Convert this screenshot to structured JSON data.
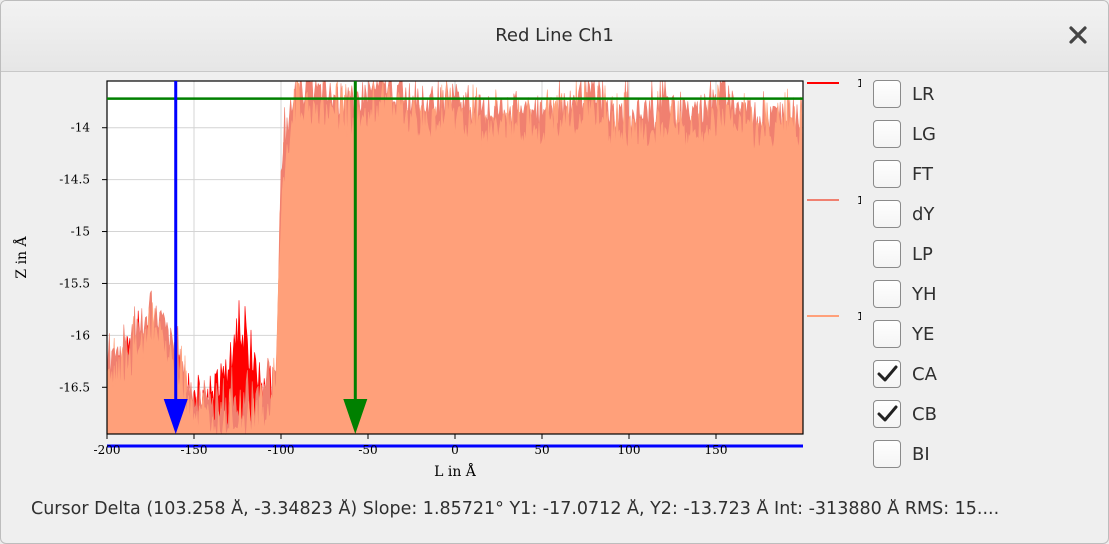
{
  "window": {
    "title": "Red Line Ch1"
  },
  "chart_data": {
    "type": "area",
    "xlabel": "L in Å",
    "ylabel": "Z in Å",
    "xlim": [
      -200,
      200
    ],
    "ylim": [
      -16.95,
      -13.55
    ],
    "x_ticks": [
      "-200",
      "-150",
      "-100",
      "-50",
      "0",
      "50",
      "100",
      "150"
    ],
    "y_ticks": [
      "-14",
      "-14.5",
      "-15",
      "-15.5",
      "-16",
      "-16.5"
    ],
    "grid": true,
    "legend": [
      {
        "label": "1",
        "color": "#ff0000"
      },
      {
        "label": "1",
        "color": "#f08070"
      },
      {
        "label": "1",
        "color": "#ffa07a"
      }
    ],
    "series": [
      {
        "color": "#ff0000",
        "x": [
          -200,
          -190,
          -180,
          -170,
          -160,
          -150,
          -140,
          -130,
          -125,
          -120,
          -115,
          -110,
          -105,
          -100
        ],
        "y": [
          -16.45,
          -16.2,
          -16.1,
          -16.0,
          -16.3,
          -16.75,
          -16.6,
          -16.3,
          -16.0,
          -16.1,
          -16.3,
          -16.5,
          -16.65,
          -16.7
        ]
      },
      {
        "color": "#ffa07a",
        "x": [
          -200,
          -190,
          -180,
          -170,
          -160,
          -150,
          -140,
          -130,
          -120,
          -110,
          -103,
          -100,
          -97,
          -93,
          -90,
          -80,
          -70,
          -60,
          -50,
          -40,
          -30,
          -20,
          -10,
          0,
          10,
          20,
          30,
          40,
          50,
          60,
          70,
          75,
          80,
          90,
          100,
          110,
          120,
          130,
          140,
          150,
          155,
          160,
          170,
          180,
          190,
          200
        ],
        "y": [
          -16.5,
          -16.3,
          -16.15,
          -16.0,
          -16.4,
          -16.8,
          -16.9,
          -16.9,
          -16.9,
          -16.8,
          -16.6,
          -14.8,
          -14.2,
          -13.95,
          -13.8,
          -13.85,
          -13.9,
          -13.95,
          -13.85,
          -13.75,
          -13.85,
          -13.95,
          -13.95,
          -13.9,
          -14.0,
          -14.05,
          -14.0,
          -14.0,
          -14.05,
          -14.0,
          -13.9,
          -13.85,
          -13.9,
          -14.05,
          -14.05,
          -14.05,
          -14.0,
          -14.05,
          -14.05,
          -13.95,
          -13.85,
          -13.95,
          -14.05,
          -14.1,
          -14.05,
          -14.05
        ]
      }
    ],
    "cursors": [
      {
        "color": "#0000ff",
        "x": -160.5
      },
      {
        "color": "#008000",
        "x": -57.3
      }
    ],
    "hline": {
      "color": "#008000",
      "y": -13.72
    }
  },
  "checkboxes": [
    {
      "label": "LR",
      "checked": false
    },
    {
      "label": "LG",
      "checked": false
    },
    {
      "label": "FT",
      "checked": false
    },
    {
      "label": "dY",
      "checked": false
    },
    {
      "label": "LP",
      "checked": false
    },
    {
      "label": "YH",
      "checked": false
    },
    {
      "label": "YE",
      "checked": false
    },
    {
      "label": "CA",
      "checked": true
    },
    {
      "label": "CB",
      "checked": true
    },
    {
      "label": "BI",
      "checked": false
    }
  ],
  "status": {
    "text": "Cursor Delta (103.258 Å, -3.34823 Å) Slope: 1.85721°  Y1: -17.0712 Å, Y2: -13.723 Å  Int: -313880 Å  RMS: 15...."
  }
}
